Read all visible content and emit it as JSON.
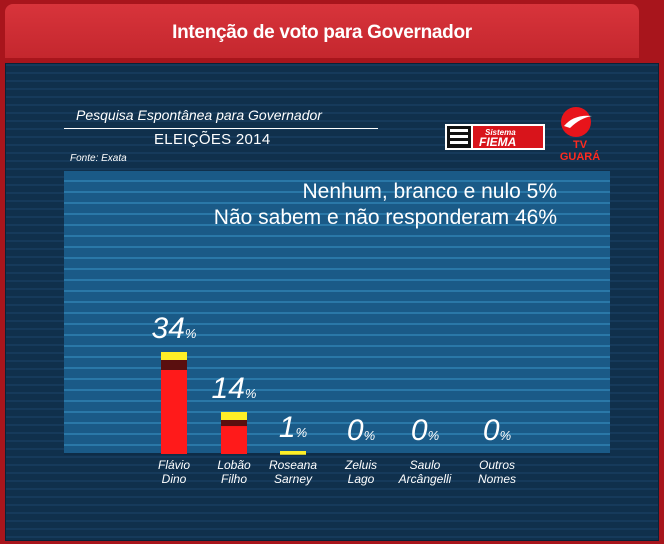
{
  "header": {
    "title": "Intenção de voto para Governador"
  },
  "chart_panel": {
    "title": "Pesquisa Espontânea para Governador",
    "subtitle": "ELEIÇÕES 2014",
    "source": "Fonte: Exata",
    "notes": [
      "Nenhum, branco e nulo 5%",
      "Não sabem e não responderam 46%"
    ],
    "logos": {
      "fiema_text_1": "Sistema",
      "fiema_text_2": "FIEMA",
      "tv_name": "TV GUARÁ"
    }
  },
  "colors": {
    "bar_main": "#ff1a1a",
    "bar_dark": "#5a0f0f",
    "bar_top": "#ffef26",
    "plot_bg": "#1a5a87",
    "frame": "#a8151c"
  },
  "chart_data": {
    "type": "bar",
    "title": "Pesquisa Espontânea para Governador",
    "subtitle": "ELEIÇÕES 2014",
    "categories": [
      "Flávio\nDino",
      "Lobão\nFilho",
      "Roseana\nSarney",
      "Zeluis\nLago",
      "Saulo\nArcângelli",
      "Outros\nNomes"
    ],
    "values": [
      34,
      14,
      1,
      0,
      0,
      0
    ],
    "value_labels": [
      "34",
      "14",
      "1",
      "0",
      "0",
      "0"
    ],
    "unit": "%",
    "ylim": [
      0,
      50
    ],
    "grid": true
  }
}
